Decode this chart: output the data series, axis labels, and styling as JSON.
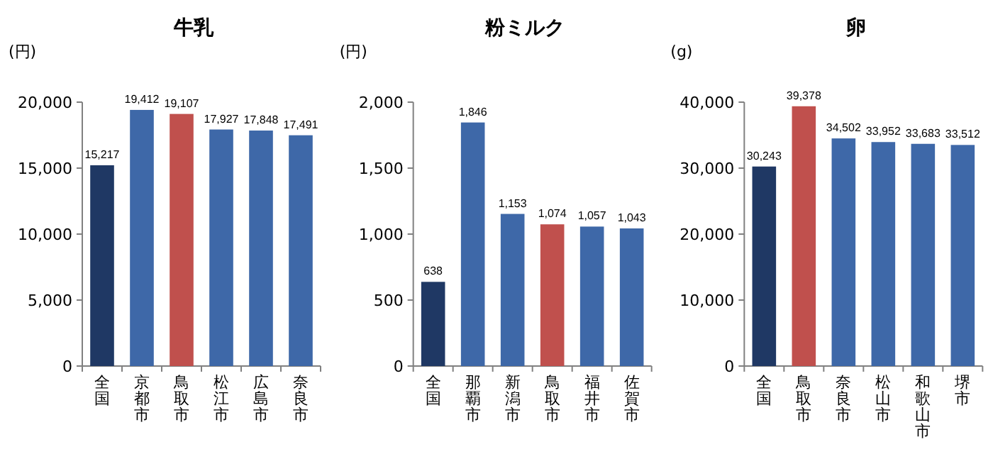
{
  "chart_data": [
    {
      "type": "bar",
      "title": "牛乳",
      "ylabel": "(円)",
      "categories": [
        "全国",
        "京都市",
        "鳥取市",
        "松江市",
        "広島市",
        "奈良市"
      ],
      "values": [
        15217,
        19412,
        19107,
        17927,
        17848,
        17491
      ],
      "colors": [
        "#1f3864",
        "#3e68a8",
        "#c0504d",
        "#3e68a8",
        "#3e68a8",
        "#3e68a8"
      ],
      "ylim": [
        0,
        20000
      ],
      "yticks": [
        {
          "value": 0,
          "label": "0"
        },
        {
          "value": 5000,
          "label": "5,000"
        },
        {
          "value": 10000,
          "label": "10,000"
        },
        {
          "value": 15000,
          "label": "15,000"
        },
        {
          "value": 20000,
          "label": "20,000"
        }
      ],
      "value_labels": [
        "15,217",
        "19,412",
        "19,107",
        "17,927",
        "17,848",
        "17,491"
      ]
    },
    {
      "type": "bar",
      "title": "粉ミルク",
      "ylabel": "(円)",
      "categories": [
        "全国",
        "那覇市",
        "新潟市",
        "鳥取市",
        "福井市",
        "佐賀市"
      ],
      "values": [
        638,
        1846,
        1153,
        1074,
        1057,
        1043
      ],
      "colors": [
        "#1f3864",
        "#3e68a8",
        "#3e68a8",
        "#c0504d",
        "#3e68a8",
        "#3e68a8"
      ],
      "ylim": [
        0,
        2000
      ],
      "yticks": [
        {
          "value": 0,
          "label": "0"
        },
        {
          "value": 500,
          "label": "500"
        },
        {
          "value": 1000,
          "label": "1,000"
        },
        {
          "value": 1500,
          "label": "1,500"
        },
        {
          "value": 2000,
          "label": "2,000"
        }
      ],
      "value_labels": [
        "638",
        "1,846",
        "1,153",
        "1,074",
        "1,057",
        "1,043"
      ]
    },
    {
      "type": "bar",
      "title": "卵",
      "ylabel": "(g)",
      "categories": [
        "全国",
        "鳥取市",
        "奈良市",
        "松山市",
        "和歌山市",
        "堺市"
      ],
      "values": [
        30243,
        39378,
        34502,
        33952,
        33683,
        33512
      ],
      "colors": [
        "#1f3864",
        "#c0504d",
        "#3e68a8",
        "#3e68a8",
        "#3e68a8",
        "#3e68a8"
      ],
      "ylim": [
        0,
        40000
      ],
      "yticks": [
        {
          "value": 0,
          "label": "0"
        },
        {
          "value": 10000,
          "label": "10,000"
        },
        {
          "value": 20000,
          "label": "20,000"
        },
        {
          "value": 30000,
          "label": "30,000"
        },
        {
          "value": 40000,
          "label": "40,000"
        }
      ],
      "value_labels": [
        "30,243",
        "39,378",
        "34,502",
        "33,952",
        "33,683",
        "33,512"
      ]
    }
  ]
}
